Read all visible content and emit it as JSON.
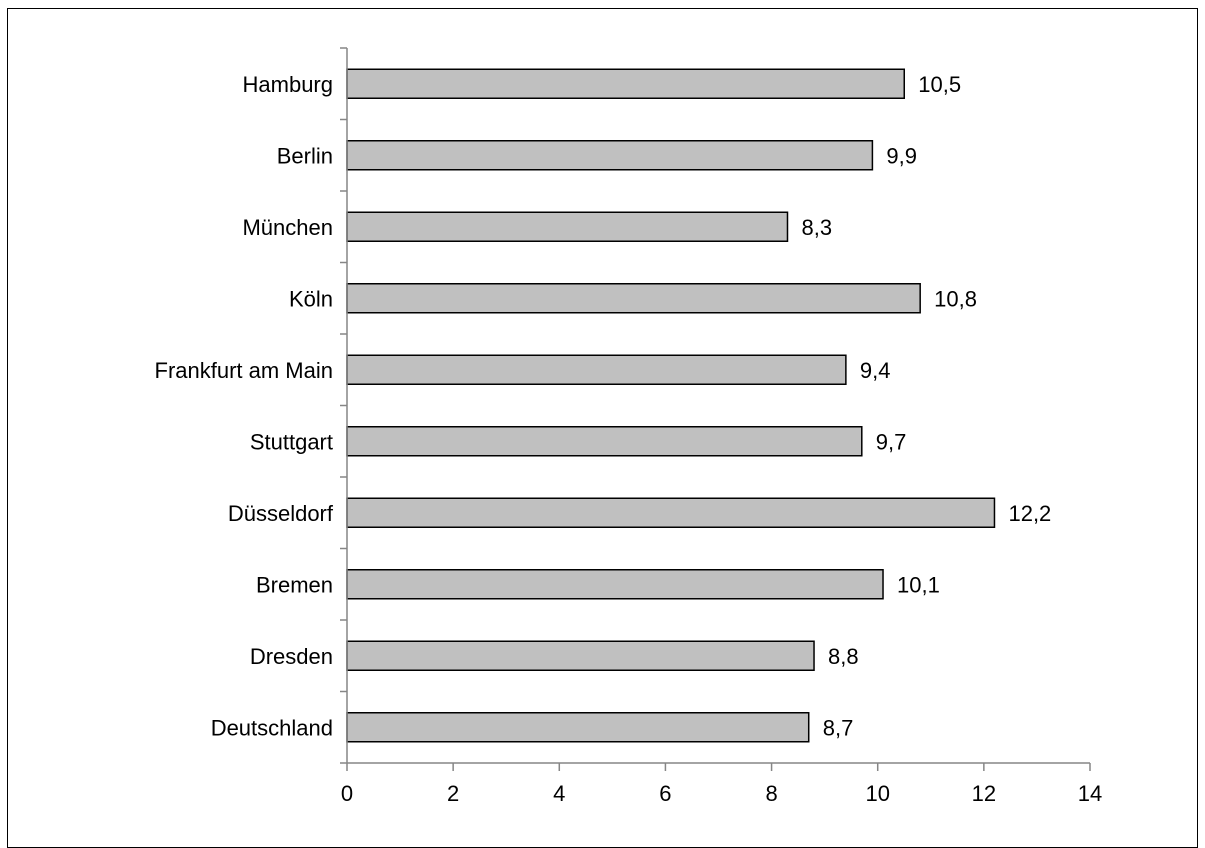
{
  "chart_data": {
    "type": "bar",
    "orientation": "horizontal",
    "title": "",
    "xlabel": "",
    "ylabel": "",
    "categories": [
      "Hamburg",
      "Berlin",
      "München",
      "Köln",
      "Frankfurt am Main",
      "Stuttgart",
      "Düsseldorf",
      "Bremen",
      "Dresden",
      "Deutschland"
    ],
    "values": [
      10.5,
      9.9,
      8.3,
      10.8,
      9.4,
      9.7,
      12.2,
      10.1,
      8.8,
      8.7
    ],
    "value_labels": [
      "10,5",
      "9,9",
      "8,3",
      "10,8",
      "9,4",
      "9,7",
      "12,2",
      "10,1",
      "8,8",
      "8,7"
    ],
    "xlim": [
      0,
      14
    ],
    "xticks": [
      0,
      2,
      4,
      6,
      8,
      10,
      12,
      14
    ],
    "grid": false,
    "legend": "none",
    "bar_color": "#c0c0c0",
    "bar_edge_color": "#000000"
  }
}
